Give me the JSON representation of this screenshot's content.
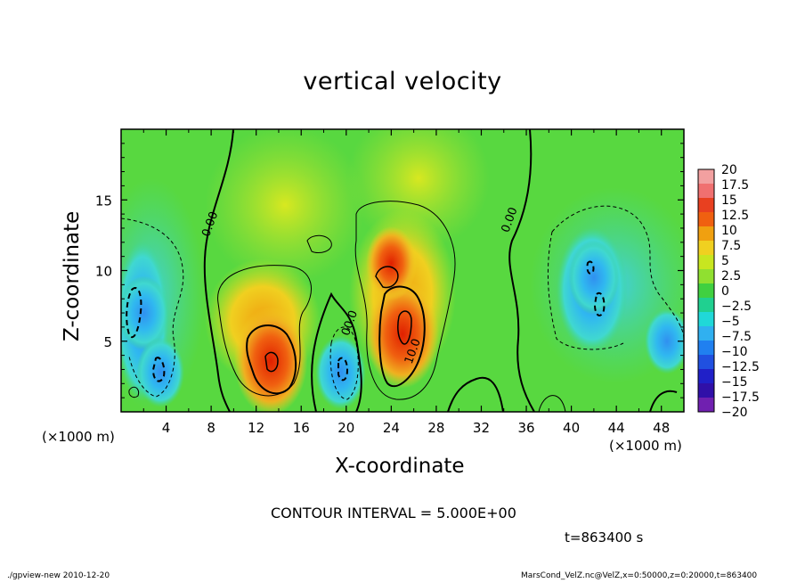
{
  "chart_data": {
    "type": "heatmap",
    "title": "vertical velocity",
    "xlabel": "X-coordinate",
    "ylabel": "Z-coordinate",
    "x_unit_label_left": "(×1000 m)",
    "x_unit_label_right": "(×1000 m)",
    "xlim": [
      0,
      50
    ],
    "ylim": [
      0,
      20
    ],
    "x_ticks": [
      "4",
      "8",
      "12",
      "16",
      "20",
      "24",
      "28",
      "32",
      "36",
      "40",
      "44",
      "48"
    ],
    "x_tick_values": [
      4,
      8,
      12,
      16,
      20,
      24,
      28,
      32,
      36,
      40,
      44,
      48
    ],
    "y_ticks": [
      "5",
      "10",
      "15"
    ],
    "y_tick_values": [
      5,
      10,
      15
    ],
    "colorbar": {
      "labels": [
        "20",
        "17.5",
        "15",
        "12.5",
        "10",
        "7.5",
        "5",
        "2.5",
        "0",
        "−2.5",
        "−5",
        "−7.5",
        "−10",
        "−12.5",
        "−15",
        "−17.5",
        "−20"
      ],
      "values": [
        20,
        17.5,
        15,
        12.5,
        10,
        7.5,
        5,
        2.5,
        0,
        -2.5,
        -5,
        -7.5,
        -10,
        -12.5,
        -15,
        -17.5,
        -20
      ],
      "colors": [
        "#f2a0a0",
        "#f07070",
        "#e84020",
        "#f06010",
        "#f0a010",
        "#f0d020",
        "#c8e620",
        "#90e030",
        "#40d040",
        "#20d090",
        "#20d8d8",
        "#30b0f0",
        "#2080f0",
        "#2050e0",
        "#2020c8",
        "#3010a8",
        "#7020b0"
      ]
    },
    "features": [
      {
        "kind": "updraft",
        "x": 13.3,
        "z": 3.6,
        "peak": 17
      },
      {
        "kind": "updraft",
        "x": 25.0,
        "z": 5.5,
        "peak": 17
      },
      {
        "kind": "updraft",
        "x": 24.0,
        "z": 10.5,
        "peak": 9
      },
      {
        "kind": "downdraft",
        "x": 2.0,
        "z": 7.0,
        "peak": -9
      },
      {
        "kind": "downdraft",
        "x": 3.5,
        "z": 2.8,
        "peak": -8
      },
      {
        "kind": "downdraft",
        "x": 19.5,
        "z": 2.8,
        "peak": -9
      },
      {
        "kind": "downdraft",
        "x": 42.0,
        "z": 9.5,
        "peak": -9
      },
      {
        "kind": "downdraft",
        "x": 48.5,
        "z": 5.0,
        "peak": -7
      }
    ],
    "contour_labels": [
      {
        "text": "0.00",
        "x": 8.2,
        "z": 13.2
      },
      {
        "text": "0.00",
        "x": 34.8,
        "z": 13.5
      },
      {
        "text": "10.0",
        "x": 26.2,
        "z": 4.2
      },
      {
        "text": "00.0",
        "x": 20.6,
        "z": 6.2
      }
    ]
  },
  "contour_interval": "CONTOUR INTERVAL = 5.000E+00",
  "time_label": "t=863400 s",
  "footer_left": "./gpview-new  2010-12-20",
  "footer_right": "MarsCond_VelZ.nc@VelZ,x=0:50000,z=0:20000,t=863400"
}
